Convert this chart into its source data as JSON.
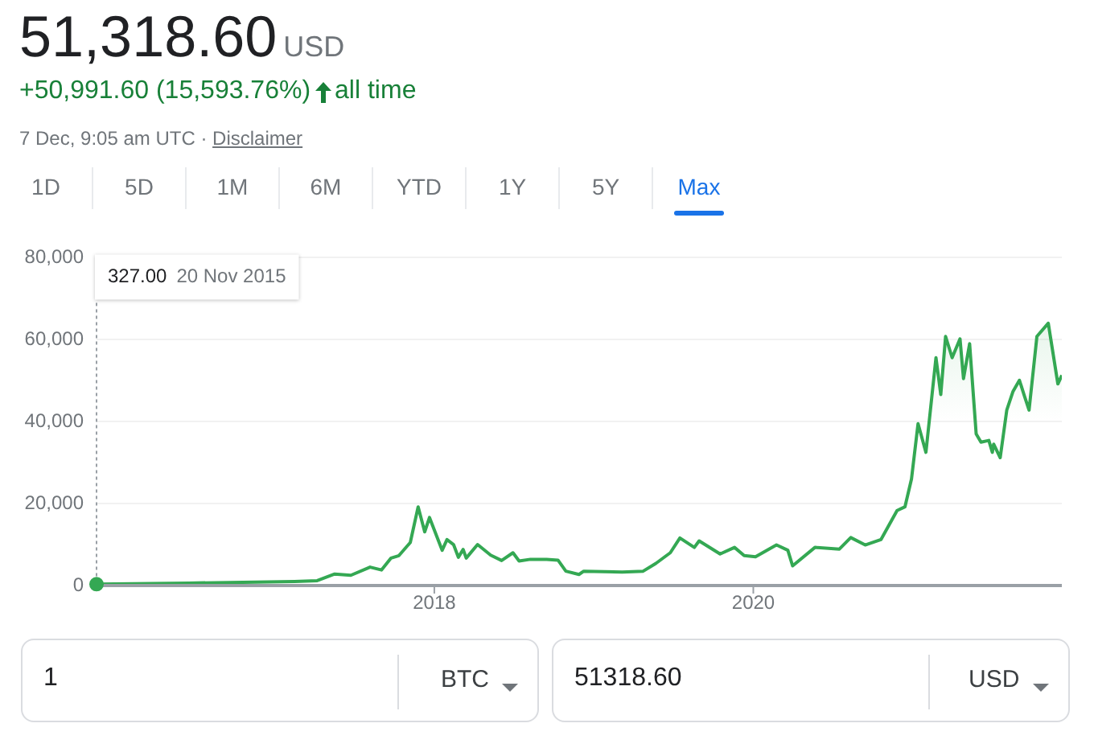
{
  "chart_data": {
    "type": "line",
    "title": "51,318.60",
    "subtitle": "+50,991.60 (15,593.76%)",
    "annotations": [
      "USD",
      "all time",
      "7 Dec, 9:05 am UTC ·",
      "Disclaimer",
      "1D",
      "5D",
      "1M",
      "6M",
      "YTD",
      "1Y",
      "5Y",
      "Max",
      "1",
      "BTC",
      "51318.60",
      "USD",
      "327.00",
      "20 Nov 2015"
    ],
    "x": [
      "2015-11-20",
      "2016-06-18",
      "2017-02-15",
      "2017-04-08",
      "2017-05-18",
      "2017-06-24",
      "2017-08-07",
      "2017-09-02",
      "2017-09-24",
      "2017-10-12",
      "2017-11-07",
      "2017-11-25",
      "2017-12-10",
      "2017-12-21",
      "2018-01-19",
      "2018-01-30",
      "2018-02-14",
      "2018-02-25",
      "2018-03-08",
      "2018-03-15",
      "2018-04-10",
      "2018-05-10",
      "2018-06-04",
      "2018-06-30",
      "2018-07-14",
      "2018-08-09",
      "2018-09-15",
      "2018-10-11",
      "2018-10-29",
      "2018-11-28",
      "2018-12-09",
      "2019-03-07",
      "2019-04-24",
      "2019-05-23",
      "2019-06-25",
      "2019-07-17",
      "2019-08-19",
      "2019-08-30",
      "2019-10-17",
      "2019-11-19",
      "2019-12-11",
      "2020-01-06",
      "2020-02-23",
      "2020-03-20",
      "2020-03-31",
      "2020-05-21",
      "2020-07-16",
      "2020-08-11",
      "2020-09-13",
      "2020-10-19",
      "2020-11-25",
      "2020-12-13",
      "2020-12-28",
      "2021-01-12",
      "2021-01-30",
      "2021-02-22",
      "2021-03-05",
      "2021-03-16",
      "2021-03-31",
      "2021-04-18",
      "2021-04-26",
      "2021-05-10",
      "2021-05-25",
      "2021-06-05",
      "2021-06-23",
      "2021-07-01",
      "2021-07-04",
      "2021-07-19",
      "2021-08-03",
      "2021-08-17",
      "2021-09-01",
      "2021-09-12",
      "2021-09-23",
      "2021-10-11",
      "2021-11-06",
      "2021-11-28",
      "2021-12-07"
    ],
    "series": [
      {
        "color": "#34a853",
        "values": [
          327,
          600,
          1000,
          1200,
          2800,
          2500,
          4500,
          3800,
          6700,
          7300,
          10500,
          19200,
          13100,
          16600,
          8600,
          11200,
          10000,
          6900,
          8800,
          6700,
          10000,
          7400,
          6100,
          8000,
          6000,
          6400,
          6400,
          6200,
          3500,
          2700,
          3500,
          3300,
          3500,
          5400,
          8000,
          11600,
          9300,
          10900,
          7700,
          9300,
          7300,
          7000,
          9900,
          8600,
          4800,
          9300,
          8900,
          11700,
          9900,
          11200,
          18300,
          19200,
          26000,
          39500,
          32500,
          55600,
          46600,
          60800,
          55600,
          60200,
          50500,
          59000,
          37000,
          35000,
          35400,
          32500,
          34500,
          31200,
          42800,
          47300,
          50100,
          46400,
          42800,
          60800,
          64000,
          49200,
          51318.6
        ]
      }
    ],
    "xlim": [
      "2015-11-20",
      "2021-12-07"
    ],
    "xticks": [
      {
        "value": "2018-01-01",
        "label": "2018"
      },
      {
        "value": "2020-01-01",
        "label": "2020"
      }
    ],
    "ylim": [
      0,
      80000
    ],
    "yticks": [
      {
        "value": 0,
        "label": "0"
      },
      {
        "value": 20000,
        "label": "20,000"
      },
      {
        "value": 40000,
        "label": "40,000"
      },
      {
        "value": 60000,
        "label": "60,000"
      },
      {
        "value": 80000,
        "label": "80,000"
      }
    ],
    "grid": "y",
    "marker": "none",
    "line_style": "solid"
  }
}
